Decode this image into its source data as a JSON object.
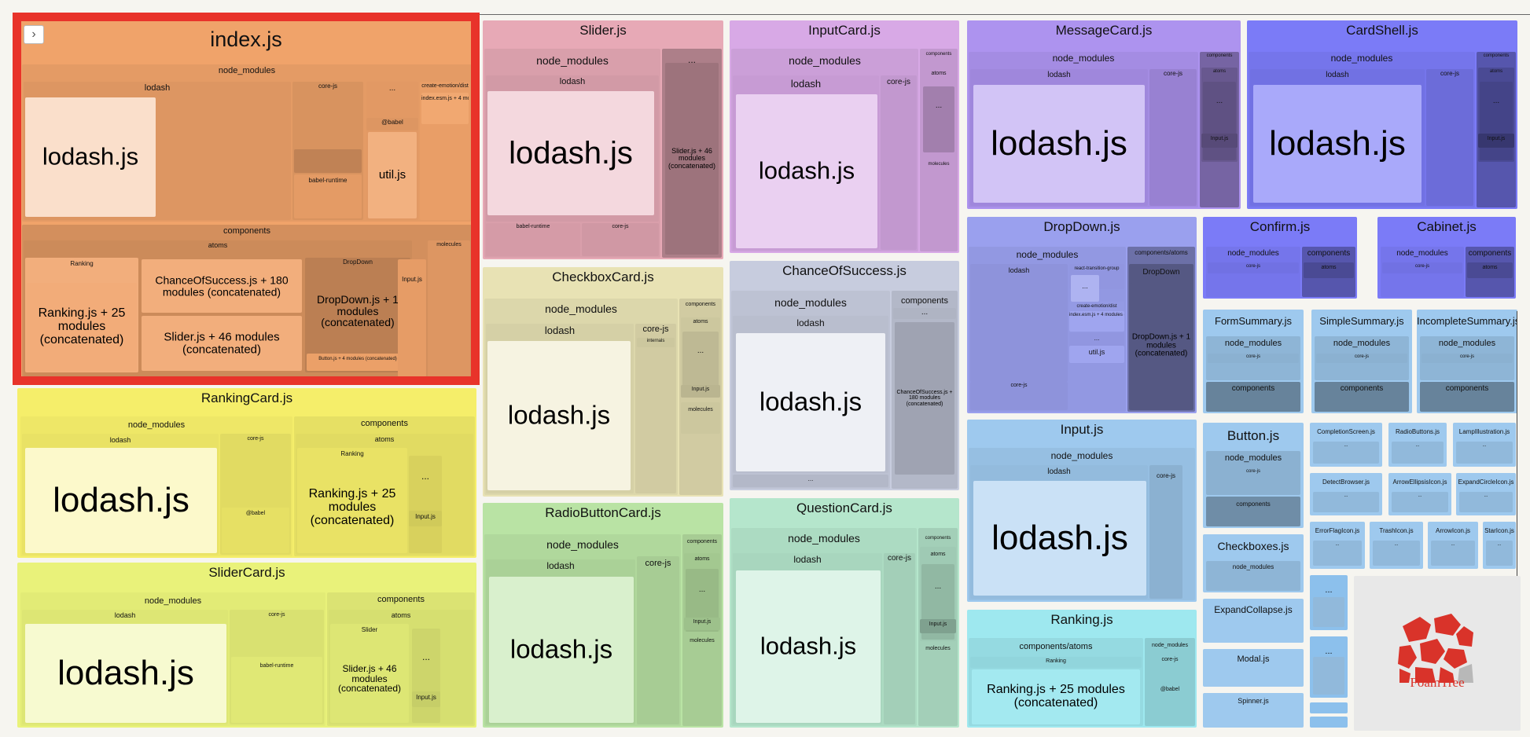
{
  "app": {
    "toggle_icon": "chevron-right-icon",
    "toggle_glyph": "›"
  },
  "logo": {
    "text": "FoamTree",
    "icon": "foamtree-logo-icon"
  },
  "labels": {
    "index_js": "index.js",
    "slider_js": "Slider.js",
    "inputcard_js": "InputCard.js",
    "messagecard_js": "MessageCard.js",
    "cardshell_js": "CardShell.js",
    "rankingcard_js": "RankingCard.js",
    "slidercard_js": "SliderCard.js",
    "checkboxcard_js": "CheckboxCard.js",
    "radiobuttoncard_js": "RadioButtonCard.js",
    "chanceofsuccess_js": "ChanceOfSuccess.js",
    "questioncard_js": "QuestionCard.js",
    "dropdown_js": "DropDown.js",
    "confirm_js": "Confirm.js",
    "cabinet_js": "Cabinet.js",
    "formsummary_js": "FormSummary.js",
    "simplesummary_js": "SimpleSummary.js",
    "incompletesummary_js": "IncompleteSummary.js",
    "input_js": "Input.js",
    "button_js": "Button.js",
    "checkboxes_js": "Checkboxes.js",
    "expandcollapse_js": "ExpandCollapse.js",
    "modal_js": "Modal.js",
    "spinner_js": "Spinner.js",
    "ranking_js": "Ranking.js",
    "completionscreen_js": "CompletionScreen.js",
    "radiobuttons_js": "RadioButtons.js",
    "lampillustration_js": "LampIllustration.js",
    "detectbrowser_js": "DetectBrowser.js",
    "arrowellipsisicon_js": "ArrowEllipsisIcon.js",
    "expandcircleicon_js": "ExpandCircleIcon.js",
    "errorflagicon_js": "ErrorFlagIcon.js",
    "trashicon_js": "TrashIcon.js",
    "arrowicon_js": "ArrowIcon.js",
    "staricon_js": "StarIcon.js",
    "node_modules": "node_modules",
    "lodash": "lodash",
    "lodash_js": "lodash.js",
    "core_js": "core-js",
    "components": "components",
    "atoms": "atoms",
    "molecules": "molecules",
    "ranking": "Ranking",
    "dropdown": "DropDown",
    "slider": "Slider",
    "babel": "@babel",
    "babel_runtime": "babel-runtime",
    "util_js": "util.js",
    "input_js_small": "Input.js",
    "internals": "internals",
    "ellipsis": "...",
    "create_emotion_dist": "create-emotion/dist",
    "index_esm": "index.esm.js + 4 modules (concatenated)",
    "react_transition_group": "react-transition-group",
    "components_atoms": "components/atoms",
    "chance_180": "ChanceOfSuccess.js + 180 modules (concatenated)",
    "slider_46": "Slider.js + 46 modules (concatenated)",
    "ranking_25": "Ranking.js + 25 modules (concatenated)",
    "dropdown_1": "DropDown.js + 1 modules (concatenated)",
    "button_4": "Button.js + 4 modules (concatenated)"
  },
  "colors": {
    "orange": "#f0a36a",
    "red": "#e8332a",
    "pink": "#e7a9b6",
    "violet": "#d8a9e6",
    "purple": "#ad93ef",
    "blue": "#7b7bf7",
    "yellow": "#f5ee6a",
    "lime": "#e9f27a",
    "khaki": "#e8e2b4",
    "green": "#b9e3a4",
    "slate": "#c7ccde",
    "mint": "#b5e6cc",
    "indigo": "#9aa0ee",
    "sky": "#9ec9ee",
    "cyan": "#9ee8ef"
  }
}
